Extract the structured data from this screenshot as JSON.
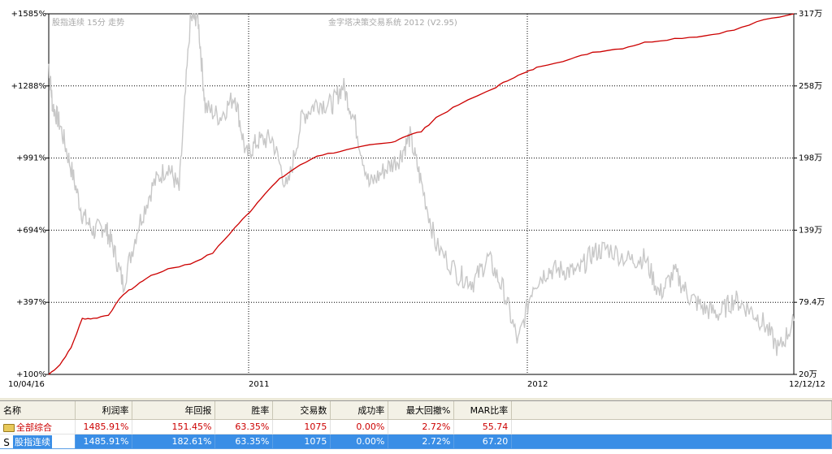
{
  "chart_data": {
    "type": "line",
    "overlay_left": "股指连续 15分 走势",
    "overlay_center": "金字塔决策交易系统 2012 (V2.95)",
    "x_start_label": "10/04/16",
    "x_end_label": "12/12/12",
    "x_year_labels": [
      "2011",
      "2012"
    ],
    "left_ticks": [
      "+1585%",
      "+1288%",
      "+991%",
      "+694%",
      "+397%",
      "+100%"
    ],
    "right_ticks": [
      "317万",
      "258万",
      "198万",
      "139万",
      "79.4万",
      "20万"
    ],
    "left_range": [
      100,
      1585
    ],
    "right_range": [
      20,
      317
    ],
    "grid": true,
    "series": [
      {
        "color": "#cc0000",
        "axis": "left",
        "x": [
          0,
          0.015,
          0.03,
          0.045,
          0.06,
          0.08,
          0.1,
          0.115,
          0.13,
          0.16,
          0.19,
          0.22,
          0.25,
          0.27,
          0.29,
          0.31,
          0.33,
          0.36,
          0.39,
          0.43,
          0.46,
          0.48,
          0.5,
          0.52,
          0.55,
          0.6,
          0.62,
          0.64,
          0.66,
          0.7,
          0.73,
          0.77,
          0.8,
          0.84,
          0.88,
          0.92,
          0.96,
          1.0
        ],
        "values": [
          100,
          140,
          210,
          330,
          330,
          345,
          430,
          460,
          495,
          535,
          555,
          600,
          705,
          770,
          845,
          905,
          948,
          1000,
          1018,
          1043,
          1055,
          1083,
          1100,
          1158,
          1210,
          1283,
          1318,
          1343,
          1370,
          1398,
          1427,
          1443,
          1467,
          1483,
          1494,
          1518,
          1560,
          1585
        ]
      },
      {
        "color": "#c8c8c8",
        "axis": "left",
        "x": [
          0,
          0.005,
          0.015,
          0.03,
          0.045,
          0.06,
          0.075,
          0.085,
          0.1,
          0.12,
          0.14,
          0.16,
          0.175,
          0.19,
          0.2,
          0.21,
          0.23,
          0.25,
          0.265,
          0.28,
          0.3,
          0.32,
          0.34,
          0.36,
          0.38,
          0.395,
          0.41,
          0.43,
          0.45,
          0.47,
          0.485,
          0.5,
          0.52,
          0.55,
          0.57,
          0.59,
          0.61,
          0.63,
          0.65,
          0.67,
          0.69,
          0.71,
          0.73,
          0.75,
          0.78,
          0.8,
          0.82,
          0.84,
          0.86,
          0.88,
          0.9,
          0.92,
          0.94,
          0.96,
          0.98,
          1.0
        ],
        "values": [
          1380,
          1210,
          1130,
          950,
          760,
          690,
          710,
          640,
          470,
          710,
          880,
          960,
          860,
          1560,
          1580,
          1200,
          1160,
          1250,
          1000,
          1060,
          1070,
          860,
          1160,
          1220,
          1210,
          1290,
          1150,
          880,
          940,
          990,
          1080,
          890,
          630,
          510,
          480,
          580,
          450,
          230,
          470,
          530,
          530,
          520,
          600,
          620,
          570,
          580,
          430,
          520,
          420,
          370,
          350,
          410,
          370,
          310,
          200,
          320
        ]
      }
    ]
  },
  "table": {
    "headers": [
      "名称",
      "利润率",
      "年回报",
      "胜率",
      "交易数",
      "成功率",
      "最大回撤%",
      "MAR比率"
    ],
    "rows": [
      {
        "icon": "folder-icon",
        "name": "全部综合",
        "cells": [
          "1485.91%",
          "151.45%",
          "63.35%",
          "1075",
          "0.00%",
          "2.72%",
          "55.74"
        ]
      },
      {
        "icon": "s-icon",
        "icon_text": "S",
        "name": "股指连续",
        "cells": [
          "1485.91%",
          "182.61%",
          "63.35%",
          "1075",
          "0.00%",
          "2.72%",
          "67.20"
        ]
      }
    ]
  },
  "colors": {
    "equity_line": "#cc0000",
    "price_line": "#c8c8c8",
    "selected_row": "#3a8ee6",
    "summary_text": "#cc0000"
  }
}
